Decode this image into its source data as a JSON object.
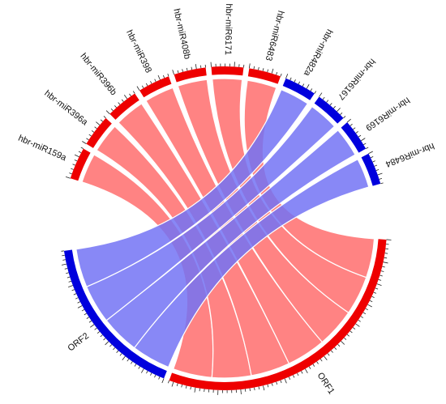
{
  "colors": {
    "red": "#ee0000",
    "blue": "#0000dd",
    "ribbon_red": "#ff7878",
    "ribbon_blue": "#7373f4",
    "ribbon_mix": "#7c3cb4"
  },
  "chart_data": {
    "type": "chord",
    "title": "",
    "segments": [
      {
        "name": "hbr-miR159a",
        "color": "red"
      },
      {
        "name": "hbr-miR396a",
        "color": "red"
      },
      {
        "name": "hbr-miR396b",
        "color": "red"
      },
      {
        "name": "hbr-miR398",
        "color": "red"
      },
      {
        "name": "hbr-miR408b",
        "color": "red"
      },
      {
        "name": "hbr-miR6171",
        "color": "red"
      },
      {
        "name": "hbr-miR6483",
        "color": "red"
      },
      {
        "name": "hbr-miR482a",
        "color": "blue"
      },
      {
        "name": "hbr-miR6167",
        "color": "blue"
      },
      {
        "name": "hbr-miR6169",
        "color": "blue"
      },
      {
        "name": "hbr-miR6484",
        "color": "blue"
      },
      {
        "name": "ORF1",
        "color": "red"
      },
      {
        "name": "ORF2",
        "color": "blue"
      }
    ],
    "links": [
      {
        "source": "hbr-miR159a",
        "target": "ORF1"
      },
      {
        "source": "hbr-miR396a",
        "target": "ORF1"
      },
      {
        "source": "hbr-miR396b",
        "target": "ORF1"
      },
      {
        "source": "hbr-miR398",
        "target": "ORF1"
      },
      {
        "source": "hbr-miR408b",
        "target": "ORF1"
      },
      {
        "source": "hbr-miR6171",
        "target": "ORF1"
      },
      {
        "source": "hbr-miR6483",
        "target": "ORF1"
      },
      {
        "source": "hbr-miR482a",
        "target": "ORF2"
      },
      {
        "source": "hbr-miR6167",
        "target": "ORF2"
      },
      {
        "source": "hbr-miR6169",
        "target": "ORF2"
      },
      {
        "source": "hbr-miR6484",
        "target": "ORF2"
      }
    ]
  }
}
